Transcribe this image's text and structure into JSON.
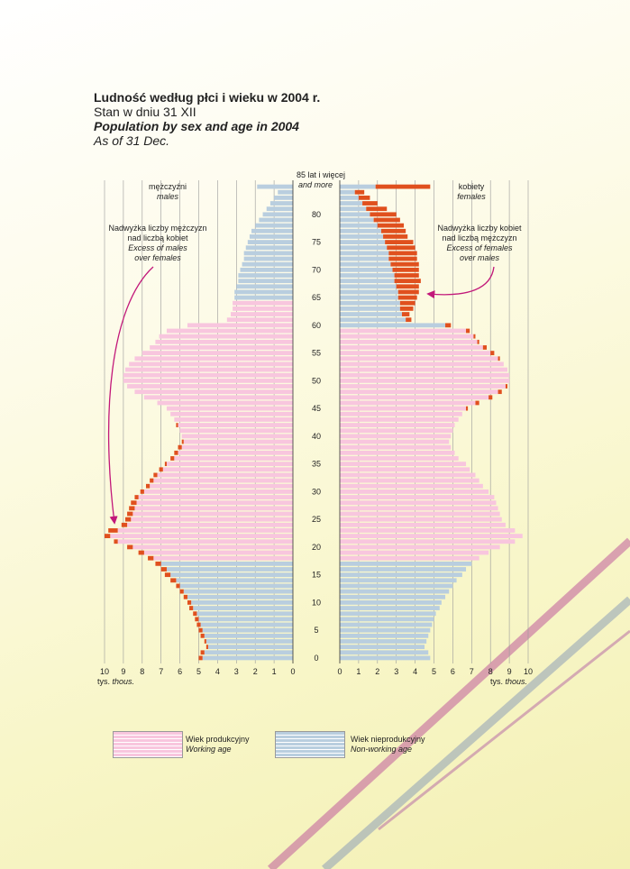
{
  "title": {
    "pl": "Ludność według płci i wieku w 2004 r.",
    "pl_sub": "Stan w dniu 31 XII",
    "en": "Population by sex and age in 2004",
    "en_sub": "As of 31 Dec."
  },
  "labels": {
    "top_age": "85 lat i więcej",
    "top_age_en": "and more",
    "males": "mężczyźni",
    "males_en": "males",
    "females": "kobiety",
    "females_en": "females",
    "excess_males_1": "Nadwyżka liczby mężczyzn",
    "excess_males_2": "nad liczbą kobiet",
    "excess_males_en_1": "Excess of males",
    "excess_males_en_2": "over females",
    "excess_females_1": "Nadwyżka liczby kobiet",
    "excess_females_2": "nad liczbą mężczyzn",
    "excess_females_en_1": "Excess of females",
    "excess_females_en_2": "over males",
    "unit_left": "tys.",
    "unit_left_en": "thous.",
    "unit_right": "tys.",
    "unit_right_en": "thous."
  },
  "legend": {
    "working_pl": "Wiek produkcyjny",
    "working_en": "Working age",
    "nonworking_pl": "Wiek nieprodukcyjny",
    "nonworking_en": "Non-working age"
  },
  "colors": {
    "working": "#f8c6de",
    "nonworking": "#b9cedf",
    "excess": "#e0501e",
    "arrow": "#c2187a",
    "axis": "#333333",
    "grid": "#9a9a9a"
  },
  "chart_data": {
    "type": "bar",
    "subtype": "population-pyramid",
    "unit": "thousands",
    "xlim": [
      0,
      10
    ],
    "x_ticks": [
      "0",
      "1",
      "2",
      "3",
      "4",
      "5",
      "6",
      "7",
      "8",
      "9",
      "10"
    ],
    "age_ticks": [
      "0",
      "5",
      "10",
      "15",
      "20",
      "25",
      "30",
      "35",
      "40",
      "45",
      "50",
      "55",
      "60",
      "65",
      "70",
      "75",
      "80"
    ],
    "ages": [
      "0",
      "1",
      "2",
      "3",
      "4",
      "5",
      "6",
      "7",
      "8",
      "9",
      "10",
      "11",
      "12",
      "13",
      "14",
      "15",
      "16",
      "17",
      "18",
      "19",
      "20",
      "21",
      "22",
      "23",
      "24",
      "25",
      "26",
      "27",
      "28",
      "29",
      "30",
      "31",
      "32",
      "33",
      "34",
      "35",
      "36",
      "37",
      "38",
      "39",
      "40",
      "41",
      "42",
      "43",
      "44",
      "45",
      "46",
      "47",
      "48",
      "49",
      "50",
      "51",
      "52",
      "53",
      "54",
      "55",
      "56",
      "57",
      "58",
      "59",
      "60",
      "61",
      "62",
      "63",
      "64",
      "65",
      "66",
      "67",
      "68",
      "69",
      "70",
      "71",
      "72",
      "73",
      "74",
      "75",
      "76",
      "77",
      "78",
      "79",
      "80",
      "81",
      "82",
      "83",
      "84",
      "85 lat i więcej"
    ],
    "males": [
      5.0,
      4.9,
      4.6,
      4.7,
      4.9,
      5.0,
      5.1,
      5.2,
      5.3,
      5.5,
      5.6,
      5.8,
      6.0,
      6.2,
      6.5,
      6.8,
      7.0,
      7.3,
      7.7,
      8.2,
      8.8,
      9.5,
      10.0,
      9.8,
      9.1,
      8.9,
      8.8,
      8.7,
      8.6,
      8.4,
      8.1,
      7.8,
      7.6,
      7.4,
      7.1,
      6.8,
      6.5,
      6.3,
      6.1,
      5.9,
      5.9,
      6.0,
      6.2,
      6.3,
      6.5,
      6.7,
      7.2,
      7.9,
      8.4,
      8.8,
      9.0,
      9.0,
      8.9,
      8.7,
      8.4,
      8.0,
      7.6,
      7.3,
      7.1,
      6.7,
      5.6,
      3.5,
      3.3,
      3.2,
      3.2,
      3.1,
      3.1,
      3.0,
      2.9,
      2.9,
      2.8,
      2.7,
      2.6,
      2.6,
      2.5,
      2.4,
      2.3,
      2.2,
      2.0,
      1.8,
      1.6,
      1.4,
      1.2,
      1.0,
      0.8,
      1.9
    ],
    "females": [
      4.8,
      4.7,
      4.5,
      4.6,
      4.7,
      4.8,
      4.9,
      5.0,
      5.1,
      5.3,
      5.4,
      5.6,
      5.8,
      6.0,
      6.2,
      6.5,
      6.7,
      7.0,
      7.4,
      7.9,
      8.5,
      9.3,
      9.7,
      9.3,
      8.8,
      8.6,
      8.5,
      8.4,
      8.3,
      8.2,
      7.9,
      7.6,
      7.4,
      7.2,
      6.9,
      6.7,
      6.3,
      6.1,
      5.9,
      5.8,
      5.9,
      6.0,
      6.1,
      6.3,
      6.5,
      6.8,
      7.4,
      8.1,
      8.6,
      8.9,
      9.0,
      9.0,
      8.9,
      8.7,
      8.5,
      8.2,
      7.8,
      7.4,
      7.2,
      6.9,
      5.9,
      3.8,
      3.7,
      3.9,
      4.0,
      4.1,
      4.2,
      4.2,
      4.3,
      4.2,
      4.2,
      4.2,
      4.1,
      4.1,
      4.0,
      3.9,
      3.6,
      3.5,
      3.4,
      3.2,
      3.0,
      2.5,
      2.0,
      1.6,
      1.3,
      4.8
    ],
    "working_age": {
      "males": [
        18,
        64
      ],
      "females": [
        18,
        59
      ]
    },
    "series": [
      {
        "name": "mężczyźni",
        "values_ref": "males"
      },
      {
        "name": "kobiety",
        "values_ref": "females"
      }
    ],
    "legend_position": "bottom-left"
  }
}
